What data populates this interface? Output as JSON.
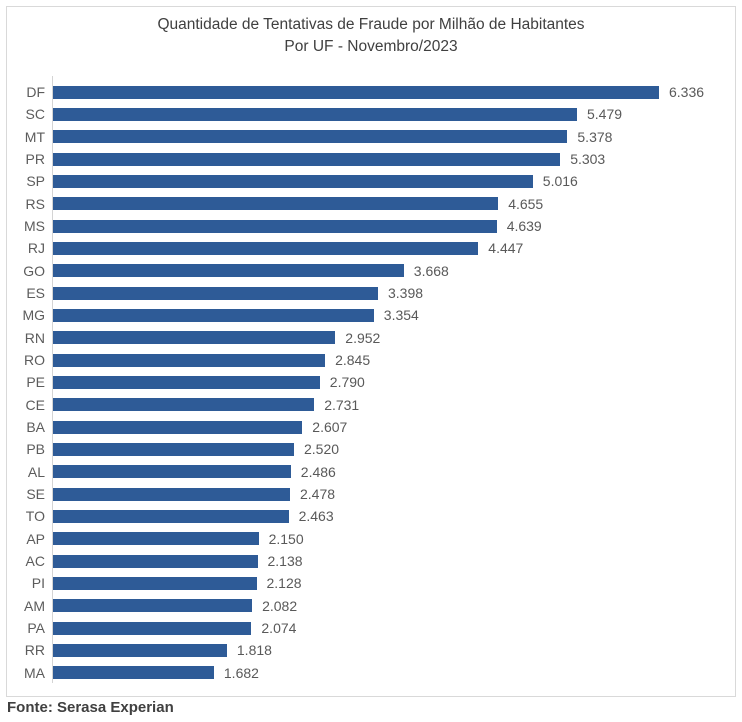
{
  "chart_data": {
    "type": "bar",
    "orientation": "horizontal",
    "title": "Quantidade de Tentativas de Fraude por Milhão de Habitantes",
    "subtitle": "Por UF - Novembro/2023",
    "categories": [
      "DF",
      "SC",
      "MT",
      "PR",
      "SP",
      "RS",
      "MS",
      "RJ",
      "GO",
      "ES",
      "MG",
      "RN",
      "RO",
      "PE",
      "CE",
      "BA",
      "PB",
      "AL",
      "SE",
      "TO",
      "AP",
      "AC",
      "PI",
      "AM",
      "PA",
      "RR",
      "MA"
    ],
    "values": [
      6336,
      5479,
      5378,
      5303,
      5016,
      4655,
      4639,
      4447,
      3668,
      3398,
      3354,
      2952,
      2845,
      2790,
      2731,
      2607,
      2520,
      2486,
      2478,
      2463,
      2150,
      2138,
      2128,
      2082,
      2074,
      1818,
      1682
    ],
    "value_labels": [
      "6.336",
      "5.479",
      "5.378",
      "5.303",
      "5.016",
      "4.655",
      "4.639",
      "4.447",
      "3.668",
      "3.398",
      "3.354",
      "2.952",
      "2.845",
      "2.790",
      "2.731",
      "2.607",
      "2.520",
      "2.486",
      "2.478",
      "2.463",
      "2.150",
      "2.138",
      "2.128",
      "2.082",
      "2.074",
      "1.818",
      "1.682"
    ],
    "grid": false,
    "legend": null,
    "bar_color": "#2e5b97"
  },
  "footer": {
    "source": "Fonte: Serasa Experian"
  },
  "colors": {
    "bar": "#2e5b97",
    "frame_border": "#d9d9d9",
    "axis_line": "#d4d4d4",
    "title_text": "#404040",
    "label_text": "#595959"
  }
}
